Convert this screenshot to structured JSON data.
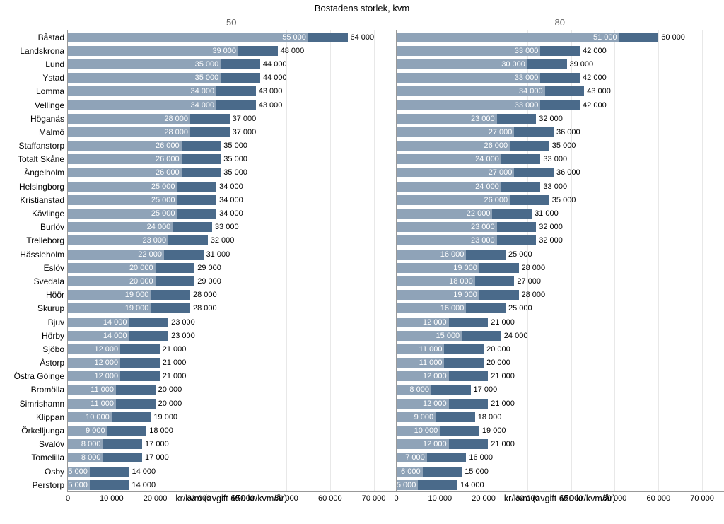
{
  "chart": {
    "type": "grouped-bar-horizontal",
    "main_title": "Bostadens storlek, kvm",
    "panel_titles": [
      "50",
      "80"
    ],
    "x_axis_label": "kr/kvm (avgift 650 kr/kvm/år)",
    "x_max": 75000,
    "x_ticks": [
      0,
      10000,
      20000,
      30000,
      40000,
      50000,
      60000,
      70000
    ],
    "x_tick_labels": [
      "0",
      "10 000",
      "20 000",
      "30 000",
      "40 000",
      "50 000",
      "60 000",
      "70 000"
    ],
    "colors": {
      "bar_light": "#8fa3b8",
      "bar_dark": "#4a6a8a",
      "grid": "#e8e8e8",
      "axis": "#999999",
      "text": "#000000",
      "panel_title": "#666666",
      "background": "#ffffff"
    },
    "font_sizes": {
      "main_title": 13,
      "panel_title": 13,
      "y_label": 12,
      "bar_label": 11,
      "x_tick": 11,
      "x_title": 12.5
    },
    "tip_width_value": 9000,
    "categories": [
      "Båstad",
      "Landskrona",
      "Lund",
      "Ystad",
      "Lomma",
      "Vellinge",
      "Höganäs",
      "Malmö",
      "Staffanstorp",
      "Totalt Skåne",
      "Ängelholm",
      "Helsingborg",
      "Kristianstad",
      "Kävlinge",
      "Burlöv",
      "Trelleborg",
      "Hässleholm",
      "Eslöv",
      "Svedala",
      "Höör",
      "Skurup",
      "Bjuv",
      "Hörby",
      "Sjöbo",
      "Åstorp",
      "Östra Göinge",
      "Bromölla",
      "Simrishamn",
      "Klippan",
      "Örkelljunga",
      "Svalöv",
      "Tomelilla",
      "Osby",
      "Perstorp"
    ],
    "panels": [
      {
        "title": "50",
        "rows": [
          {
            "inner": 55000,
            "outer": 64000,
            "inner_label": "55 000",
            "outer_label": "64 000"
          },
          {
            "inner": 39000,
            "outer": 48000,
            "inner_label": "39 000",
            "outer_label": "48 000"
          },
          {
            "inner": 35000,
            "outer": 44000,
            "inner_label": "35 000",
            "outer_label": "44 000"
          },
          {
            "inner": 35000,
            "outer": 44000,
            "inner_label": "35 000",
            "outer_label": "44 000"
          },
          {
            "inner": 34000,
            "outer": 43000,
            "inner_label": "34 000",
            "outer_label": "43 000"
          },
          {
            "inner": 34000,
            "outer": 43000,
            "inner_label": "34 000",
            "outer_label": "43 000"
          },
          {
            "inner": 28000,
            "outer": 37000,
            "inner_label": "28 000",
            "outer_label": "37 000"
          },
          {
            "inner": 28000,
            "outer": 37000,
            "inner_label": "28 000",
            "outer_label": "37 000"
          },
          {
            "inner": 26000,
            "outer": 35000,
            "inner_label": "26 000",
            "outer_label": "35 000"
          },
          {
            "inner": 26000,
            "outer": 35000,
            "inner_label": "26 000",
            "outer_label": "35 000"
          },
          {
            "inner": 26000,
            "outer": 35000,
            "inner_label": "26 000",
            "outer_label": "35 000"
          },
          {
            "inner": 25000,
            "outer": 34000,
            "inner_label": "25 000",
            "outer_label": "34 000"
          },
          {
            "inner": 25000,
            "outer": 34000,
            "inner_label": "25 000",
            "outer_label": "34 000"
          },
          {
            "inner": 25000,
            "outer": 34000,
            "inner_label": "25 000",
            "outer_label": "34 000"
          },
          {
            "inner": 24000,
            "outer": 33000,
            "inner_label": "24 000",
            "outer_label": "33 000"
          },
          {
            "inner": 23000,
            "outer": 32000,
            "inner_label": "23 000",
            "outer_label": "32 000"
          },
          {
            "inner": 22000,
            "outer": 31000,
            "inner_label": "22 000",
            "outer_label": "31 000"
          },
          {
            "inner": 20000,
            "outer": 29000,
            "inner_label": "20 000",
            "outer_label": "29 000"
          },
          {
            "inner": 20000,
            "outer": 29000,
            "inner_label": "20 000",
            "outer_label": "29 000"
          },
          {
            "inner": 19000,
            "outer": 28000,
            "inner_label": "19 000",
            "outer_label": "28 000"
          },
          {
            "inner": 19000,
            "outer": 28000,
            "inner_label": "19 000",
            "outer_label": "28 000"
          },
          {
            "inner": 14000,
            "outer": 23000,
            "inner_label": "14 000",
            "outer_label": "23 000"
          },
          {
            "inner": 14000,
            "outer": 23000,
            "inner_label": "14 000",
            "outer_label": "23 000"
          },
          {
            "inner": 12000,
            "outer": 21000,
            "inner_label": "12 000",
            "outer_label": "21 000"
          },
          {
            "inner": 12000,
            "outer": 21000,
            "inner_label": "12 000",
            "outer_label": "21 000"
          },
          {
            "inner": 12000,
            "outer": 21000,
            "inner_label": "12 000",
            "outer_label": "21 000"
          },
          {
            "inner": 11000,
            "outer": 20000,
            "inner_label": "11 000",
            "outer_label": "20 000"
          },
          {
            "inner": 11000,
            "outer": 20000,
            "inner_label": "11 000",
            "outer_label": "20 000"
          },
          {
            "inner": 10000,
            "outer": 19000,
            "inner_label": "10 000",
            "outer_label": "19 000"
          },
          {
            "inner": 9000,
            "outer": 18000,
            "inner_label": "9 000",
            "outer_label": "18 000"
          },
          {
            "inner": 8000,
            "outer": 17000,
            "inner_label": "8 000",
            "outer_label": "17 000"
          },
          {
            "inner": 8000,
            "outer": 17000,
            "inner_label": "8 000",
            "outer_label": "17 000"
          },
          {
            "inner": 5000,
            "outer": 14000,
            "inner_label": "5 000",
            "outer_label": "14 000"
          },
          {
            "inner": 5000,
            "outer": 14000,
            "inner_label": "5 000",
            "outer_label": "14 000"
          }
        ]
      },
      {
        "title": "80",
        "rows": [
          {
            "inner": 51000,
            "outer": 60000,
            "inner_label": "51 000",
            "outer_label": "60 000"
          },
          {
            "inner": 33000,
            "outer": 42000,
            "inner_label": "33 000",
            "outer_label": "42 000"
          },
          {
            "inner": 30000,
            "outer": 39000,
            "inner_label": "30 000",
            "outer_label": "39 000"
          },
          {
            "inner": 33000,
            "outer": 42000,
            "inner_label": "33 000",
            "outer_label": "42 000"
          },
          {
            "inner": 34000,
            "outer": 43000,
            "inner_label": "34 000",
            "outer_label": "43 000"
          },
          {
            "inner": 33000,
            "outer": 42000,
            "inner_label": "33 000",
            "outer_label": "42 000"
          },
          {
            "inner": 23000,
            "outer": 32000,
            "inner_label": "23 000",
            "outer_label": "32 000"
          },
          {
            "inner": 27000,
            "outer": 36000,
            "inner_label": "27 000",
            "outer_label": "36 000"
          },
          {
            "inner": 26000,
            "outer": 35000,
            "inner_label": "26 000",
            "outer_label": "35 000"
          },
          {
            "inner": 24000,
            "outer": 33000,
            "inner_label": "24 000",
            "outer_label": "33 000"
          },
          {
            "inner": 27000,
            "outer": 36000,
            "inner_label": "27 000",
            "outer_label": "36 000"
          },
          {
            "inner": 24000,
            "outer": 33000,
            "inner_label": "24 000",
            "outer_label": "33 000"
          },
          {
            "inner": 26000,
            "outer": 35000,
            "inner_label": "26 000",
            "outer_label": "35 000"
          },
          {
            "inner": 22000,
            "outer": 31000,
            "inner_label": "22 000",
            "outer_label": "31 000"
          },
          {
            "inner": 23000,
            "outer": 32000,
            "inner_label": "23 000",
            "outer_label": "32 000"
          },
          {
            "inner": 23000,
            "outer": 32000,
            "inner_label": "23 000",
            "outer_label": "32 000"
          },
          {
            "inner": 16000,
            "outer": 25000,
            "inner_label": "16 000",
            "outer_label": "25 000"
          },
          {
            "inner": 19000,
            "outer": 28000,
            "inner_label": "19 000",
            "outer_label": "28 000"
          },
          {
            "inner": 18000,
            "outer": 27000,
            "inner_label": "18 000",
            "outer_label": "27 000"
          },
          {
            "inner": 19000,
            "outer": 28000,
            "inner_label": "19 000",
            "outer_label": "28 000"
          },
          {
            "inner": 16000,
            "outer": 25000,
            "inner_label": "16 000",
            "outer_label": "25 000"
          },
          {
            "inner": 12000,
            "outer": 21000,
            "inner_label": "12 000",
            "outer_label": "21 000"
          },
          {
            "inner": 15000,
            "outer": 24000,
            "inner_label": "15 000",
            "outer_label": "24 000"
          },
          {
            "inner": 11000,
            "outer": 20000,
            "inner_label": "11 000",
            "outer_label": "20 000"
          },
          {
            "inner": 11000,
            "outer": 20000,
            "inner_label": "11 000",
            "outer_label": "20 000"
          },
          {
            "inner": 12000,
            "outer": 21000,
            "inner_label": "12 000",
            "outer_label": "21 000"
          },
          {
            "inner": 8000,
            "outer": 17000,
            "inner_label": "8 000",
            "outer_label": "17 000"
          },
          {
            "inner": 12000,
            "outer": 21000,
            "inner_label": "12 000",
            "outer_label": "21 000"
          },
          {
            "inner": 9000,
            "outer": 18000,
            "inner_label": "9 000",
            "outer_label": "18 000"
          },
          {
            "inner": 10000,
            "outer": 19000,
            "inner_label": "10 000",
            "outer_label": "19 000"
          },
          {
            "inner": 12000,
            "outer": 21000,
            "inner_label": "12 000",
            "outer_label": "21 000"
          },
          {
            "inner": 7000,
            "outer": 16000,
            "inner_label": "7 000",
            "outer_label": "16 000"
          },
          {
            "inner": 6000,
            "outer": 15000,
            "inner_label": "6 000",
            "outer_label": "15 000"
          },
          {
            "inner": 5000,
            "outer": 14000,
            "inner_label": "5 000",
            "outer_label": "14 000"
          }
        ]
      }
    ]
  }
}
